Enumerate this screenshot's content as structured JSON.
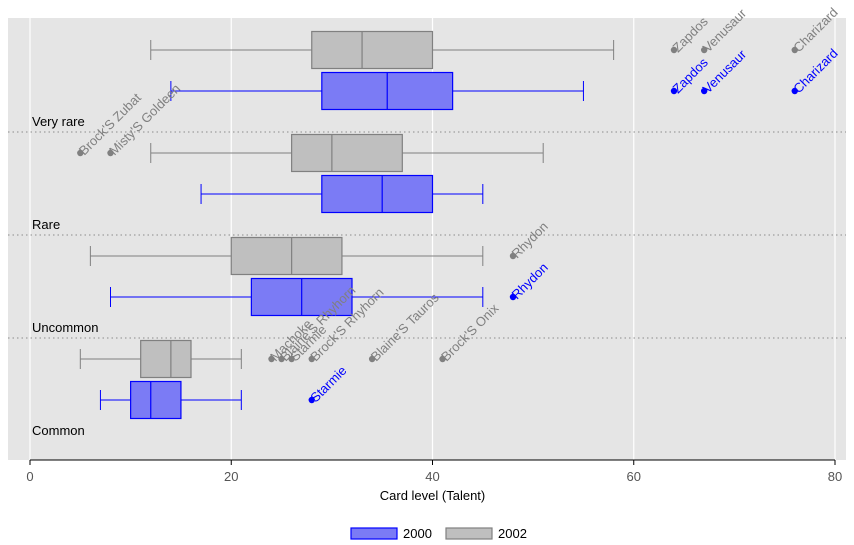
{
  "chart_data": {
    "type": "boxplot",
    "orientation": "horizontal",
    "title": "",
    "xlabel": "Card level (Talent)",
    "ylabel": "",
    "xlim": [
      0,
      80
    ],
    "xticks": [
      0,
      20,
      40,
      60,
      80
    ],
    "grid": true,
    "legend_position": "bottom",
    "groups": [
      "Very rare",
      "Rare",
      "Uncommon",
      "Common"
    ],
    "series": [
      {
        "name": "2000",
        "color": "#7b7bf5",
        "edge_color": "#0000ff",
        "label_color": "#0000ff",
        "boxes": [
          {
            "group": "Very rare",
            "whisker_low": 14,
            "q1": 29,
            "median": 35.5,
            "q3": 42,
            "whisker_high": 55,
            "outliers": [
              {
                "x": 64,
                "label": "Zapdos"
              },
              {
                "x": 67,
                "label": "Venusaur"
              },
              {
                "x": 76,
                "label": "Charizard"
              }
            ]
          },
          {
            "group": "Rare",
            "whisker_low": 17,
            "q1": 29,
            "median": 35,
            "q3": 40,
            "whisker_high": 45,
            "outliers": []
          },
          {
            "group": "Uncommon",
            "whisker_low": 8,
            "q1": 22,
            "median": 27,
            "q3": 32,
            "whisker_high": 45,
            "outliers": [
              {
                "x": 48,
                "label": "Rhydon"
              }
            ]
          },
          {
            "group": "Common",
            "whisker_low": 7,
            "q1": 10,
            "median": 12,
            "q3": 15,
            "whisker_high": 21,
            "outliers": [
              {
                "x": 28,
                "label": "Starmie"
              }
            ]
          }
        ]
      },
      {
        "name": "2002",
        "color": "#bfbfbf",
        "edge_color": "#808080",
        "label_color": "#808080",
        "boxes": [
          {
            "group": "Very rare",
            "whisker_low": 12,
            "q1": 28,
            "median": 33,
            "q3": 40,
            "whisker_high": 58,
            "outliers": [
              {
                "x": 64,
                "label": "Zapdos"
              },
              {
                "x": 67,
                "label": "Venusaur"
              },
              {
                "x": 76,
                "label": "Charizard"
              }
            ]
          },
          {
            "group": "Rare",
            "whisker_low": 12,
            "q1": 26,
            "median": 30,
            "q3": 37,
            "whisker_high": 51,
            "outliers": [
              {
                "x": 5,
                "label": "Brock'S Zubat"
              },
              {
                "x": 8,
                "label": "Misty'S Goldeen"
              }
            ]
          },
          {
            "group": "Uncommon",
            "whisker_low": 6,
            "q1": 20,
            "median": 26,
            "q3": 31,
            "whisker_high": 45,
            "outliers": [
              {
                "x": 48,
                "label": "Rhydon"
              }
            ]
          },
          {
            "group": "Common",
            "whisker_low": 5,
            "q1": 11,
            "median": 14,
            "q3": 16,
            "whisker_high": 21,
            "outliers": [
              {
                "x": 24,
                "label": "Machoke"
              },
              {
                "x": 25,
                "label": "Blaine'S Rhyhorn"
              },
              {
                "x": 26,
                "label": "Starmie"
              },
              {
                "x": 28,
                "label": "Brock'S Rhyhorn"
              },
              {
                "x": 34,
                "label": "Blaine'S Tauros"
              },
              {
                "x": 41,
                "label": "Brock'S Onix"
              }
            ]
          }
        ]
      }
    ]
  }
}
